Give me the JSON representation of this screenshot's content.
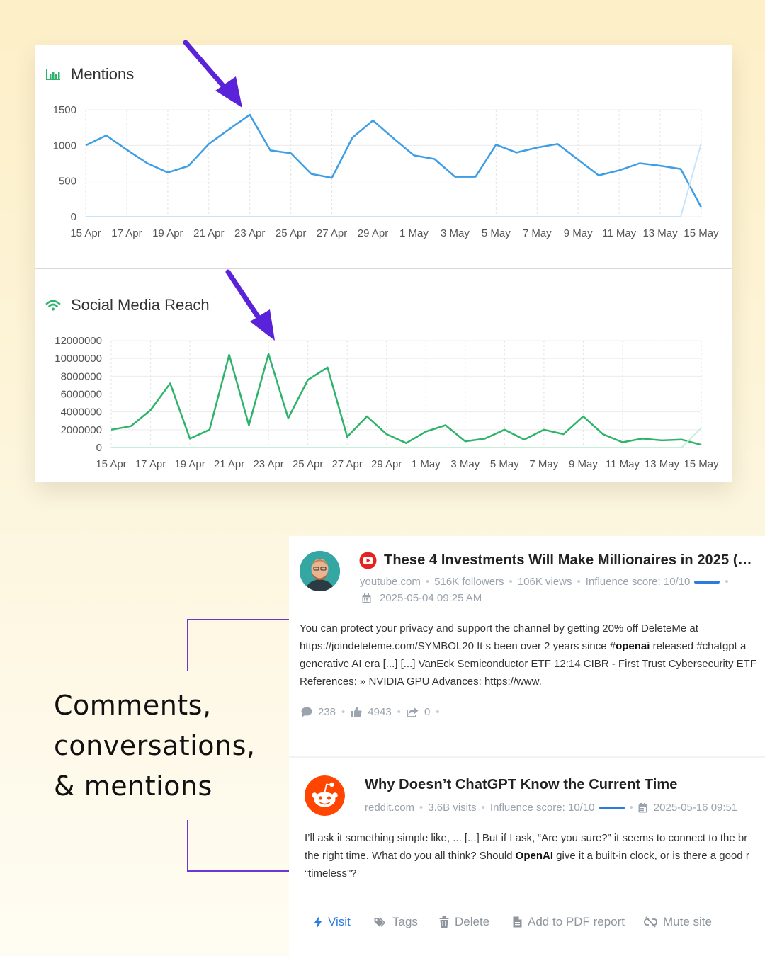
{
  "colors": {
    "mentions_line": "#3d9ee6",
    "reach_line": "#2db36a",
    "arrow": "#5a22d9",
    "accent_blue": "#2b7be0",
    "bracket": "#6c35d6"
  },
  "chart_data": [
    {
      "type": "line",
      "title": "Mentions",
      "title_icon": "bar-chart-icon",
      "x": [
        "15 Apr",
        "16 Apr",
        "17 Apr",
        "18 Apr",
        "19 Apr",
        "20 Apr",
        "21 Apr",
        "22 Apr",
        "23 Apr",
        "24 Apr",
        "25 Apr",
        "26 Apr",
        "27 Apr",
        "28 Apr",
        "29 Apr",
        "30 Apr",
        "1 May",
        "2 May",
        "3 May",
        "4 May",
        "5 May",
        "6 May",
        "7 May",
        "8 May",
        "9 May",
        "10 May",
        "11 May",
        "12 May",
        "13 May",
        "14 May",
        "15 May"
      ],
      "x_tick_labels": [
        "15 Apr",
        "17 Apr",
        "19 Apr",
        "21 Apr",
        "23 Apr",
        "25 Apr",
        "27 Apr",
        "29 Apr",
        "1 May",
        "3 May",
        "5 May",
        "7 May",
        "9 May",
        "11 May",
        "13 May",
        "15 May"
      ],
      "series": [
        {
          "values": [
            1000,
            1140,
            940,
            750,
            620,
            710,
            1020,
            1230,
            1430,
            930,
            890,
            600,
            545,
            1110,
            1350,
            1100,
            860,
            810,
            560,
            560,
            1010,
            900,
            970,
            1020,
            800,
            580,
            650,
            750,
            715,
            670,
            130
          ]
        },
        {
          "values": [
            0,
            0,
            0,
            0,
            0,
            0,
            0,
            0,
            0,
            0,
            0,
            0,
            0,
            0,
            0,
            0,
            0,
            0,
            0,
            0,
            0,
            0,
            0,
            0,
            0,
            0,
            0,
            0,
            0,
            0,
            1030
          ]
        }
      ],
      "ylim": [
        0,
        1500
      ],
      "y_ticks": [
        0,
        500,
        1000,
        1500
      ],
      "grid": true,
      "annotation": "arrow pointing at 23 Apr peak"
    },
    {
      "type": "line",
      "title": "Social Media Reach",
      "title_icon": "wifi-icon",
      "x": [
        "15 Apr",
        "16 Apr",
        "17 Apr",
        "18 Apr",
        "19 Apr",
        "20 Apr",
        "21 Apr",
        "22 Apr",
        "23 Apr",
        "24 Apr",
        "25 Apr",
        "26 Apr",
        "27 Apr",
        "28 Apr",
        "29 Apr",
        "30 Apr",
        "1 May",
        "2 May",
        "3 May",
        "4 May",
        "5 May",
        "6 May",
        "7 May",
        "8 May",
        "9 May",
        "10 May",
        "11 May",
        "12 May",
        "13 May",
        "14 May",
        "15 May"
      ],
      "x_tick_labels": [
        "15 Apr",
        "17 Apr",
        "19 Apr",
        "21 Apr",
        "23 Apr",
        "25 Apr",
        "27 Apr",
        "29 Apr",
        "1 May",
        "3 May",
        "5 May",
        "7 May",
        "9 May",
        "11 May",
        "13 May",
        "15 May"
      ],
      "series": [
        {
          "values": [
            2000000,
            2400000,
            4200000,
            7200000,
            1000000,
            2000000,
            10400000,
            2500000,
            10500000,
            3300000,
            7600000,
            9000000,
            1200000,
            3500000,
            1500000,
            500000,
            1800000,
            2500000,
            700000,
            1000000,
            2000000,
            900000,
            2000000,
            1500000,
            3500000,
            1500000,
            600000,
            1000000,
            800000,
            900000,
            300000
          ]
        },
        {
          "values": [
            0,
            0,
            0,
            0,
            0,
            0,
            0,
            0,
            0,
            0,
            0,
            0,
            0,
            0,
            0,
            0,
            0,
            0,
            0,
            0,
            0,
            0,
            0,
            0,
            0,
            0,
            0,
            0,
            0,
            0,
            2200000
          ]
        }
      ],
      "ylim": [
        0,
        12000000
      ],
      "y_ticks": [
        0,
        2000000,
        4000000,
        6000000,
        8000000,
        10000000,
        12000000
      ],
      "grid": true,
      "annotation": "arrow pointing at 23 Apr peak"
    }
  ],
  "caption": {
    "line1": "Comments,",
    "line2": "conversations,",
    "line3": "& mentions"
  },
  "mentions": [
    {
      "source_icon": "youtube-icon",
      "avatar_icon": "person-avatar",
      "title": "These 4 Investments Will Make Millionaires in 2025 (…",
      "domain": "youtube.com",
      "followers": "516K followers",
      "views": "106K views",
      "influence": "Influence score: 10/10",
      "date": "2025-05-04 09:25 AM",
      "snippet_line1": "You can protect your privacy and support the channel by getting 20% off DeleteMe at",
      "snippet_line2_pre": "https://joindeleteme.com/SYMBOL20 It s been over 2 years since #",
      "snippet_line2_bold": "openai",
      "snippet_line2_post": " released #chatgpt a",
      "snippet_line3": "generative AI era [...] [...] VanEck Semiconductor ETF 12:14 CIBR - First Trust Cybersecurity ETF",
      "snippet_line4": "References: » NVIDIA GPU Advances: https://www.",
      "comments": "238",
      "likes": "4943",
      "shares": "0"
    },
    {
      "source_icon": "reddit-icon",
      "title": "Why Doesn’t ChatGPT Know the Current Time",
      "domain": "reddit.com",
      "visits": "3.6B visits",
      "influence": "Influence score: 10/10",
      "date": "2025-05-16 09:51",
      "snippet_line1": "I’ll ask it something simple like, ... [...] But if I ask, “Are you sure?” it seems to connect to the br",
      "snippet_line2_pre": "the right time. What do you all think? Should ",
      "snippet_line2_bold": "OpenAI",
      "snippet_line2_post": " give it a built-in clock, or is there a good r",
      "snippet_line3": "“timeless”?"
    }
  ],
  "actions": {
    "visit": "Visit",
    "tags": "Tags",
    "delete": "Delete",
    "pdf": "Add to PDF report",
    "mute": "Mute site"
  }
}
